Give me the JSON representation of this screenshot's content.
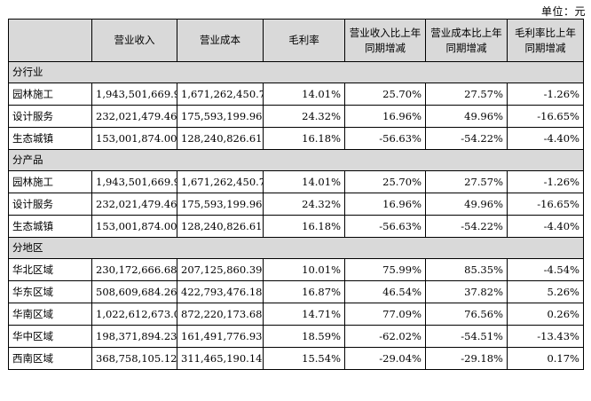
{
  "unit_label": "单位：元",
  "headers": [
    "",
    "营业收入",
    "营业成本",
    "毛利率",
    "营业收入比上年同期增减",
    "营业成本比上年同期增减",
    "毛利率比上年同期增减"
  ],
  "sections": [
    {
      "title": "分行业",
      "rows": [
        [
          "园林施工",
          "1,943,501,669.90",
          "1,671,262,450.76",
          "14.01%",
          "25.70%",
          "27.57%",
          "-1.26%"
        ],
        [
          "设计服务",
          "232,021,479.46",
          "175,593,199.96",
          "24.32%",
          "16.96%",
          "49.96%",
          "-16.65%"
        ],
        [
          "生态城镇",
          "153,001,874.00",
          "128,240,826.61",
          "16.18%",
          "-56.63%",
          "-54.22%",
          "-4.40%"
        ]
      ]
    },
    {
      "title": "分产品",
      "rows": [
        [
          "园林施工",
          "1,943,501,669.90",
          "1,671,262,450.76",
          "14.01%",
          "25.70%",
          "27.57%",
          "-1.26%"
        ],
        [
          "设计服务",
          "232,021,479.46",
          "175,593,199.96",
          "24.32%",
          "16.96%",
          "49.96%",
          "-16.65%"
        ],
        [
          "生态城镇",
          "153,001,874.00",
          "128,240,826.61",
          "16.18%",
          "-56.63%",
          "-54.22%",
          "-4.40%"
        ]
      ]
    },
    {
      "title": "分地区",
      "rows": [
        [
          "华北区域",
          "230,172,666.68",
          "207,125,860.39",
          "10.01%",
          "75.99%",
          "85.35%",
          "-4.54%"
        ],
        [
          "华东区域",
          "508,609,684.26",
          "422,793,476.18",
          "16.87%",
          "46.54%",
          "37.82%",
          "5.26%"
        ],
        [
          "华南区域",
          "1,022,612,673.07",
          "872,220,173.68",
          "14.71%",
          "77.09%",
          "76.56%",
          "0.26%"
        ],
        [
          "华中区域",
          "198,371,894.23",
          "161,491,776.93",
          "18.59%",
          "-62.02%",
          "-54.51%",
          "-13.43%"
        ],
        [
          "西南区域",
          "368,758,105.12",
          "311,465,190.14",
          "15.54%",
          "-29.04%",
          "-29.18%",
          "0.17%"
        ]
      ]
    }
  ]
}
